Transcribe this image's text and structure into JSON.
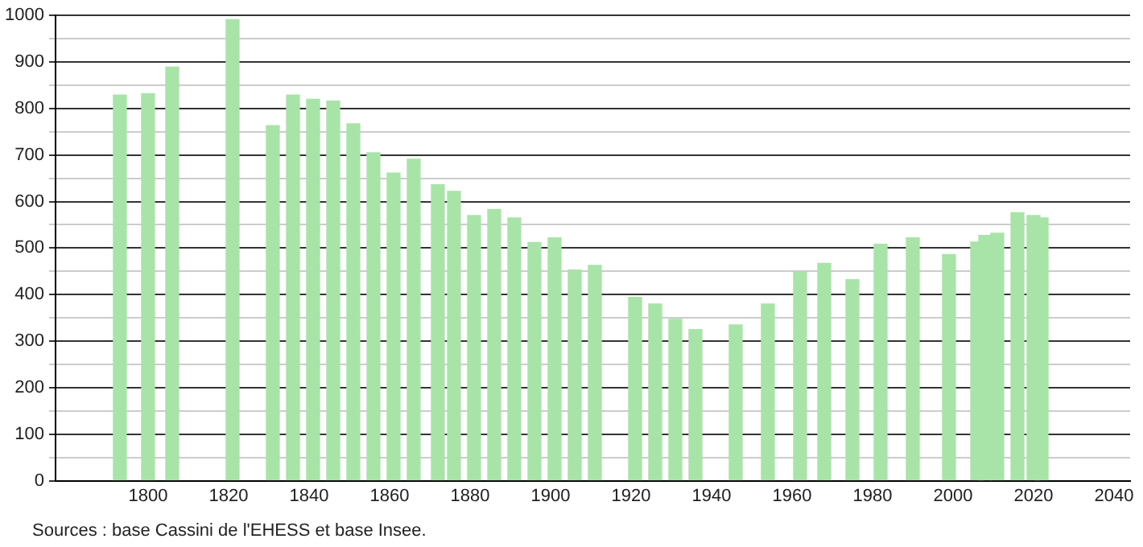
{
  "chart_data": {
    "type": "bar",
    "x": [
      1793,
      1800,
      1806,
      1821,
      1831,
      1836,
      1841,
      1846,
      1851,
      1856,
      1861,
      1866,
      1872,
      1876,
      1881,
      1886,
      1891,
      1896,
      1901,
      1906,
      1911,
      1921,
      1926,
      1931,
      1936,
      1946,
      1954,
      1962,
      1968,
      1975,
      1982,
      1990,
      1999,
      2006,
      2008,
      2011,
      2016,
      2020,
      2022
    ],
    "values": [
      829,
      832,
      889,
      991,
      763,
      829,
      820,
      816,
      767,
      705,
      661,
      691,
      636,
      622,
      570,
      583,
      565,
      512,
      522,
      453,
      463,
      394,
      380,
      347,
      325,
      335,
      380,
      448,
      467,
      432,
      508,
      522,
      486,
      513,
      527,
      532,
      576,
      570,
      565
    ],
    "color": "#a8e4a8",
    "xlim": [
      1777,
      2044
    ],
    "xticks": [
      1800,
      1820,
      1840,
      1860,
      1880,
      1900,
      1920,
      1940,
      1960,
      1980,
      2000,
      2020,
      2040
    ],
    "ylim": [
      0,
      1000
    ],
    "yticks": [
      0,
      {
        "value": 50,
        "label": null
      },
      100,
      {
        "value": 150,
        "label": null
      },
      200,
      {
        "value": 250,
        "label": null
      },
      300,
      {
        "value": 350,
        "label": null
      },
      400,
      {
        "value": 450,
        "label": null
      },
      500,
      {
        "value": 550,
        "label": null
      },
      600,
      {
        "value": 650,
        "label": null
      },
      700,
      {
        "value": 750,
        "label": null
      },
      800,
      {
        "value": 850,
        "label": null
      },
      900,
      {
        "value": 950,
        "label": null
      },
      1000
    ],
    "grid": "y",
    "legend": false,
    "annotations": [
      "Sources : base Cassini de l'EHESS et base Insee."
    ]
  }
}
